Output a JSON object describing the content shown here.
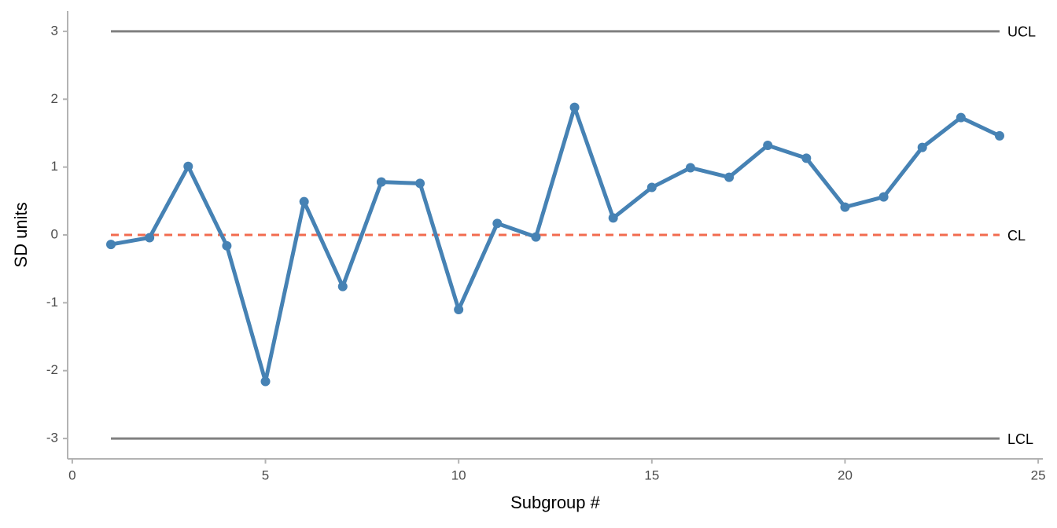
{
  "chart_data": {
    "type": "line",
    "x_label": "Subgroup #",
    "y_label": "SD units",
    "x": [
      1,
      2,
      3,
      4,
      5,
      6,
      7,
      8,
      9,
      10,
      11,
      12,
      13,
      14,
      15,
      16,
      17,
      18,
      19,
      20,
      21,
      22,
      23,
      24
    ],
    "series": [
      {
        "color": "#4682b4",
        "values": [
          -0.14,
          -0.04,
          1.01,
          -0.16,
          -2.16,
          0.49,
          -0.76,
          0.78,
          0.76,
          -1.1,
          0.17,
          -0.03,
          1.88,
          0.25,
          0.7,
          0.99,
          0.85,
          1.32,
          1.13,
          0.41,
          0.56,
          1.29,
          1.73,
          1.46
        ]
      }
    ],
    "control_lines": [
      {
        "name": "UCL",
        "value": 3,
        "color": "#808080",
        "dashed": false
      },
      {
        "name": "CL",
        "value": 0,
        "color": "#f26b4f",
        "dashed": true
      },
      {
        "name": "LCL",
        "value": -3,
        "color": "#808080",
        "dashed": false
      }
    ],
    "xlim": [
      -0.12,
      25.12
    ],
    "ylim": [
      -3.3,
      3.3
    ],
    "xticks": [
      0,
      5,
      10,
      15,
      20,
      25
    ],
    "yticks": [
      -3,
      -2,
      -1,
      0,
      1,
      2,
      3
    ],
    "grid": false
  }
}
